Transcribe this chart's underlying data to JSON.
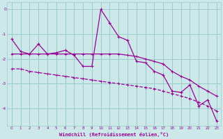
{
  "xlabel": "Windchill (Refroidissement éolien,°C)",
  "background_color": "#cce8e8",
  "grid_color": "#99cccc",
  "line_color": "#990099",
  "x_values": [
    0,
    1,
    2,
    3,
    4,
    5,
    6,
    7,
    8,
    9,
    10,
    11,
    12,
    13,
    14,
    15,
    16,
    17,
    18,
    19,
    20,
    21,
    22,
    23
  ],
  "line1_y": [
    -1.2,
    -1.7,
    -1.8,
    -1.4,
    -1.8,
    -1.75,
    -1.65,
    -1.85,
    -2.3,
    -2.3,
    0.0,
    -0.55,
    -1.1,
    -1.25,
    -2.1,
    -2.15,
    -2.5,
    -2.65,
    -3.3,
    -3.35,
    -3.05,
    -3.9,
    -3.65,
    -4.5
  ],
  "line2_y": [
    -1.8,
    -1.8,
    -1.8,
    -1.8,
    -1.8,
    -1.8,
    -1.8,
    -1.8,
    -1.8,
    -1.8,
    -1.8,
    -1.8,
    -1.8,
    -1.85,
    -1.9,
    -2.0,
    -2.1,
    -2.2,
    -2.5,
    -2.7,
    -2.85,
    -3.1,
    -3.3,
    -3.5
  ],
  "line3_y": [
    -2.4,
    -2.4,
    -2.5,
    -2.55,
    -2.6,
    -2.65,
    -2.7,
    -2.75,
    -2.8,
    -2.85,
    -2.9,
    -2.95,
    -3.0,
    -3.05,
    -3.1,
    -3.15,
    -3.2,
    -3.3,
    -3.4,
    -3.5,
    -3.6,
    -3.75,
    -3.9,
    -4.1
  ],
  "ylim": [
    -4.7,
    0.3
  ],
  "xlim": [
    -0.5,
    23.5
  ],
  "yticks": [
    0,
    -1,
    -2,
    -3,
    -4
  ],
  "xticks": [
    0,
    1,
    2,
    3,
    4,
    5,
    6,
    7,
    8,
    9,
    10,
    11,
    12,
    13,
    14,
    15,
    16,
    17,
    18,
    19,
    20,
    21,
    22,
    23
  ]
}
